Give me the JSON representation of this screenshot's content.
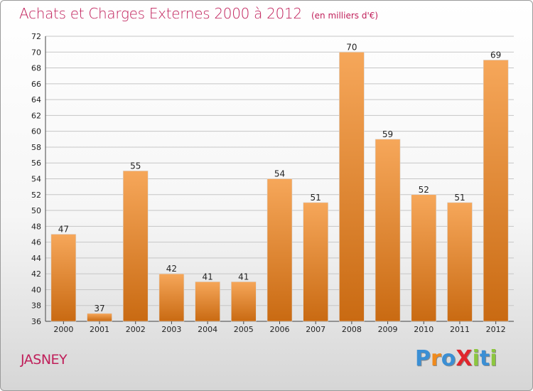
{
  "title": {
    "main": "Achats et Charges Externes 2000 à 2012",
    "unit": "(en milliers d'€)"
  },
  "commune": "JASNEY",
  "logo": {
    "text": "ProXiti",
    "letters": [
      "P",
      "r",
      "o",
      "X",
      "i",
      "t",
      "i"
    ],
    "colors": [
      "#3b8fd4",
      "#f08a1c",
      "#3b8fd4",
      "#e0262d",
      "#8cc63f",
      "#3b8fd4",
      "#8cc63f"
    ]
  },
  "chart_data": {
    "type": "bar",
    "categories": [
      "2000",
      "2001",
      "2002",
      "2003",
      "2004",
      "2005",
      "2006",
      "2007",
      "2008",
      "2009",
      "2010",
      "2011",
      "2012"
    ],
    "values": [
      47,
      37,
      55,
      42,
      41,
      41,
      54,
      51,
      70,
      59,
      52,
      51,
      69
    ],
    "value_labels": [
      "47",
      "37",
      "55",
      "42",
      "41",
      "41",
      "54",
      "51",
      "70",
      "59",
      "52",
      "51",
      "69"
    ],
    "ylim": [
      36,
      72
    ],
    "yticks": [
      "36",
      "38",
      "40",
      "42",
      "44",
      "46",
      "48",
      "50",
      "52",
      "54",
      "56",
      "58",
      "60",
      "62",
      "64",
      "66",
      "68",
      "70",
      "72"
    ],
    "grid": true,
    "bar_color": "#f0922e",
    "bar_color_light": "#f6a75a",
    "bar_color_dark": "#c96a12",
    "grid_color": "#c6c6c6"
  }
}
